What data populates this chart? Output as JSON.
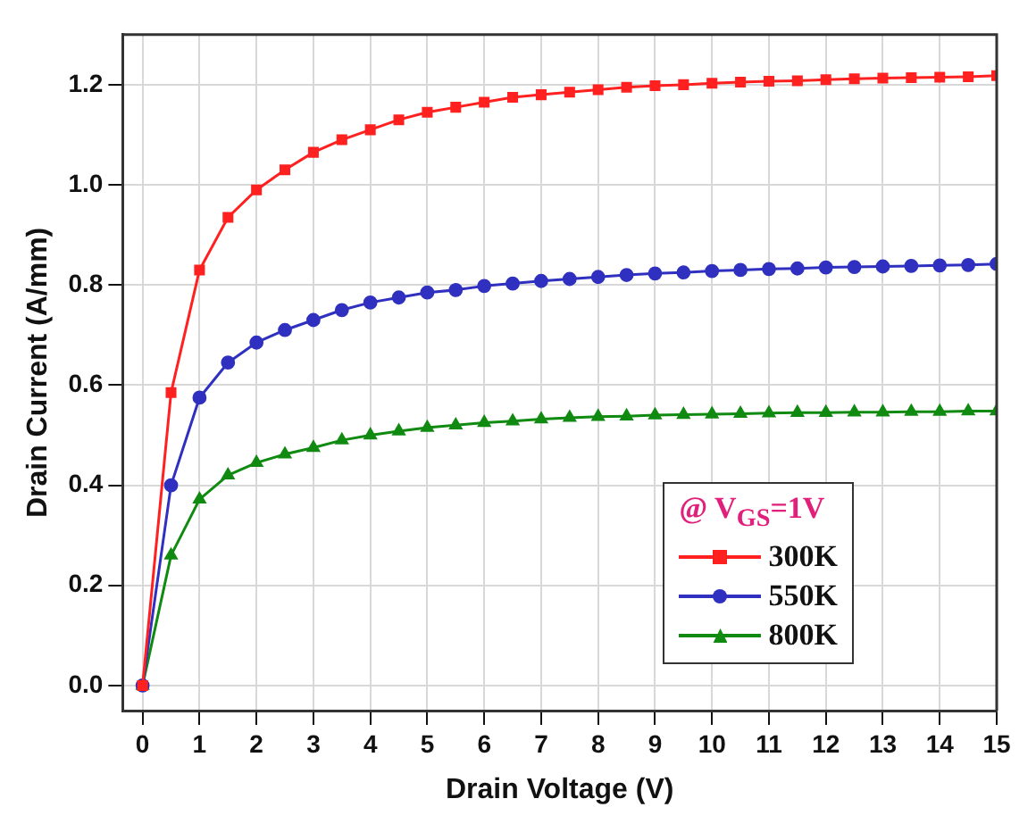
{
  "chart_data": {
    "type": "line",
    "xlabel": "Drain Voltage (V)",
    "ylabel": "Drain Current (A/mm)",
    "legend_title": "@ V$_{GS}$=1V",
    "x": [
      0,
      0.5,
      1,
      1.5,
      2,
      2.5,
      3,
      3.5,
      4,
      4.5,
      5,
      5.5,
      6,
      6.5,
      7,
      7.5,
      8,
      8.5,
      9,
      9.5,
      10,
      10.5,
      11,
      11.5,
      12,
      12.5,
      13,
      13.5,
      14,
      14.5,
      15
    ],
    "series": [
      {
        "name": "300K",
        "color": "#ff2020",
        "marker": "square",
        "values": [
          0,
          0.585,
          0.83,
          0.935,
          0.99,
          1.03,
          1.065,
          1.09,
          1.11,
          1.13,
          1.145,
          1.155,
          1.165,
          1.175,
          1.18,
          1.185,
          1.19,
          1.195,
          1.198,
          1.2,
          1.203,
          1.205,
          1.207,
          1.208,
          1.21,
          1.212,
          1.213,
          1.214,
          1.215,
          1.216,
          1.218
        ]
      },
      {
        "name": "550K",
        "color": "#3030c0",
        "marker": "circle",
        "values": [
          0,
          0.4,
          0.575,
          0.645,
          0.685,
          0.71,
          0.73,
          0.75,
          0.765,
          0.775,
          0.785,
          0.79,
          0.798,
          0.803,
          0.808,
          0.812,
          0.816,
          0.82,
          0.823,
          0.825,
          0.828,
          0.83,
          0.832,
          0.833,
          0.835,
          0.836,
          0.837,
          0.838,
          0.839,
          0.84,
          0.842
        ]
      },
      {
        "name": "800K",
        "color": "#108a10",
        "marker": "triangle",
        "values": [
          0,
          0.26,
          0.372,
          0.42,
          0.445,
          0.462,
          0.475,
          0.49,
          0.5,
          0.508,
          0.515,
          0.52,
          0.525,
          0.528,
          0.532,
          0.535,
          0.537,
          0.538,
          0.54,
          0.541,
          0.542,
          0.543,
          0.544,
          0.545,
          0.545,
          0.546,
          0.546,
          0.547,
          0.547,
          0.548,
          0.548
        ]
      }
    ],
    "xlim": [
      -0.35,
      15
    ],
    "xticks": [
      0,
      1,
      2,
      3,
      4,
      5,
      6,
      7,
      8,
      9,
      10,
      11,
      12,
      13,
      14,
      15
    ],
    "ylim": [
      -0.05,
      1.3
    ],
    "yticks": [
      {
        "value": 0,
        "label": "0.0"
      },
      0.2,
      0.4,
      0.6,
      0.8,
      {
        "value": 1,
        "label": "1.0"
      },
      1.2
    ],
    "grid": true,
    "legend": "bottom right",
    "line_style": "solid"
  }
}
